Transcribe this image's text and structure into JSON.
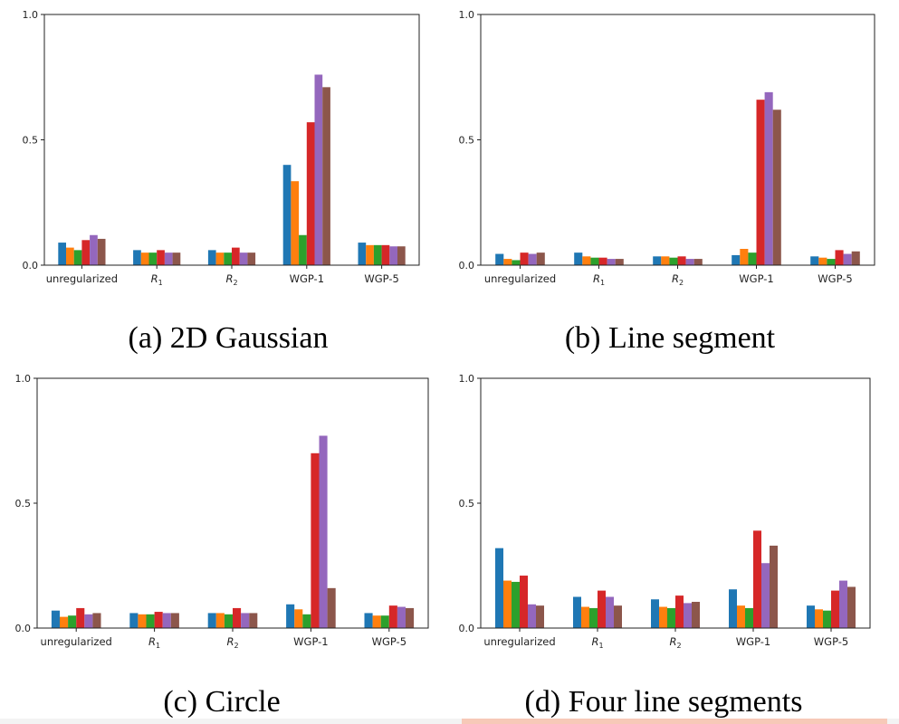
{
  "colors": [
    "#1f77b4",
    "#ff7f0e",
    "#2ca02c",
    "#d62728",
    "#9467bd",
    "#8c564b"
  ],
  "chart_data": [
    {
      "type": "bar",
      "caption": "(a) 2D Gaussian",
      "categories": [
        "unregularized",
        "R1",
        "R2",
        "WGP-1",
        "WGP-5"
      ],
      "yticks": [
        "0.0",
        "0.5",
        "1.0"
      ],
      "ylim": [
        0,
        1
      ],
      "values": [
        [
          0.09,
          0.07,
          0.06,
          0.1,
          0.12,
          0.105
        ],
        [
          0.06,
          0.05,
          0.05,
          0.06,
          0.05,
          0.05
        ],
        [
          0.06,
          0.05,
          0.05,
          0.07,
          0.05,
          0.05
        ],
        [
          0.4,
          0.335,
          0.12,
          0.57,
          0.76,
          0.71
        ],
        [
          0.09,
          0.08,
          0.08,
          0.08,
          0.075,
          0.075
        ]
      ]
    },
    {
      "type": "bar",
      "caption": "(b) Line segment",
      "categories": [
        "unregularized",
        "R1",
        "R2",
        "WGP-1",
        "WGP-5"
      ],
      "yticks": [
        "0.0",
        "0.5",
        "1.0"
      ],
      "ylim": [
        0,
        1
      ],
      "values": [
        [
          0.045,
          0.025,
          0.02,
          0.05,
          0.045,
          0.05
        ],
        [
          0.05,
          0.035,
          0.03,
          0.03,
          0.025,
          0.025
        ],
        [
          0.035,
          0.035,
          0.03,
          0.035,
          0.025,
          0.025
        ],
        [
          0.04,
          0.065,
          0.05,
          0.66,
          0.69,
          0.62
        ],
        [
          0.035,
          0.03,
          0.025,
          0.06,
          0.045,
          0.055
        ]
      ]
    },
    {
      "type": "bar",
      "caption": "(c) Circle",
      "categories": [
        "unregularized",
        "R1",
        "R2",
        "WGP-1",
        "WGP-5"
      ],
      "yticks": [
        "0.0",
        "0.5",
        "1.0"
      ],
      "ylim": [
        0,
        1
      ],
      "values": [
        [
          0.07,
          0.045,
          0.05,
          0.08,
          0.055,
          0.06
        ],
        [
          0.06,
          0.055,
          0.055,
          0.065,
          0.06,
          0.06
        ],
        [
          0.06,
          0.06,
          0.055,
          0.08,
          0.06,
          0.06
        ],
        [
          0.095,
          0.075,
          0.055,
          0.7,
          0.77,
          0.16
        ],
        [
          0.06,
          0.05,
          0.05,
          0.09,
          0.085,
          0.08
        ]
      ]
    },
    {
      "type": "bar",
      "caption": "(d) Four line segments",
      "categories": [
        "unregularized",
        "R1",
        "R2",
        "WGP-1",
        "WGP-5"
      ],
      "yticks": [
        "0.0",
        "0.5",
        "1.0"
      ],
      "ylim": [
        0,
        1
      ],
      "values": [
        [
          0.32,
          0.19,
          0.185,
          0.21,
          0.095,
          0.09
        ],
        [
          0.125,
          0.085,
          0.08,
          0.15,
          0.125,
          0.09
        ],
        [
          0.115,
          0.085,
          0.08,
          0.13,
          0.1,
          0.105
        ],
        [
          0.155,
          0.09,
          0.08,
          0.39,
          0.26,
          0.33
        ],
        [
          0.09,
          0.075,
          0.07,
          0.15,
          0.19,
          0.165
        ]
      ]
    }
  ]
}
